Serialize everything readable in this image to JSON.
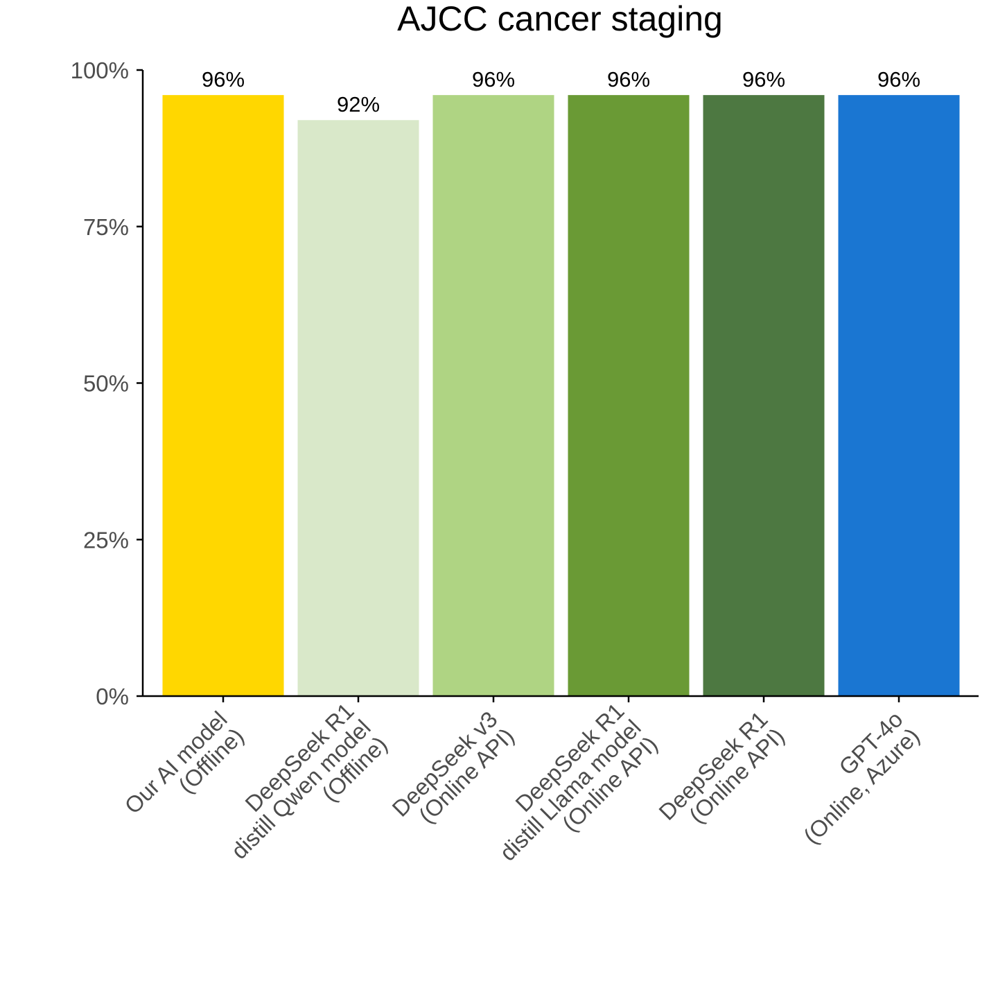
{
  "chart_data": {
    "type": "bar",
    "title": "AJCC cancer staging",
    "xlabel": "",
    "ylabel": "",
    "ylim": [
      0,
      100
    ],
    "y_ticks": [
      "0%",
      "25%",
      "50%",
      "75%",
      "100%"
    ],
    "y_tick_values": [
      0,
      25,
      50,
      75,
      100
    ],
    "categories": [
      [
        "Our AI model",
        "(Offline)"
      ],
      [
        "DeepSeek R1",
        "distill Qwen model",
        "(Offline)"
      ],
      [
        "DeepSeek v3",
        "(Online API)"
      ],
      [
        "DeepSeek R1",
        "distill Llama model",
        "(Online API)"
      ],
      [
        "DeepSeek R1",
        "(Online API)"
      ],
      [
        "GPT-4o",
        "(Online, Azure)"
      ]
    ],
    "values": [
      96,
      92,
      96,
      96,
      96,
      96
    ],
    "data_labels": [
      "96%",
      "92%",
      "96%",
      "96%",
      "96%",
      "96%"
    ],
    "colors": [
      "#FFD700",
      "#D9E8C9",
      "#AFD483",
      "#6A9A35",
      "#4D7841",
      "#1A76D2"
    ],
    "grid": false,
    "legend": "none"
  }
}
